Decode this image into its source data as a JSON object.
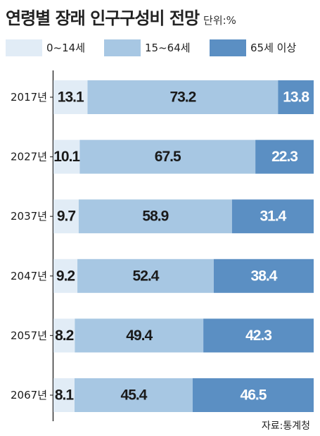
{
  "header": {
    "title": "연령별 장래 인구구성비 전망",
    "unit": "단위:%"
  },
  "colors": {
    "age_0_14": "#e1ecf6",
    "age_15_64": "#a7c7e3",
    "age_65_plus": "#5b8fc3",
    "axis": "#333333",
    "text": "#1a1a1a"
  },
  "chart_data": {
    "type": "bar",
    "orientation": "horizontal",
    "stacked": true,
    "categories": [
      "2017년",
      "2027년",
      "2037년",
      "2047년",
      "2057년",
      "2067년"
    ],
    "series": [
      {
        "name": "0~14세",
        "values": [
          13.1,
          10.1,
          9.7,
          9.2,
          8.2,
          8.1
        ]
      },
      {
        "name": "15~64세",
        "values": [
          73.2,
          67.5,
          58.9,
          52.4,
          49.4,
          45.4
        ]
      },
      {
        "name": "65세 이상",
        "values": [
          13.8,
          22.3,
          31.4,
          38.4,
          42.3,
          46.5
        ]
      }
    ],
    "xlim": [
      0,
      100
    ],
    "legend_position": "top",
    "grid": false
  },
  "footer": {
    "source": "자료:통계청"
  }
}
